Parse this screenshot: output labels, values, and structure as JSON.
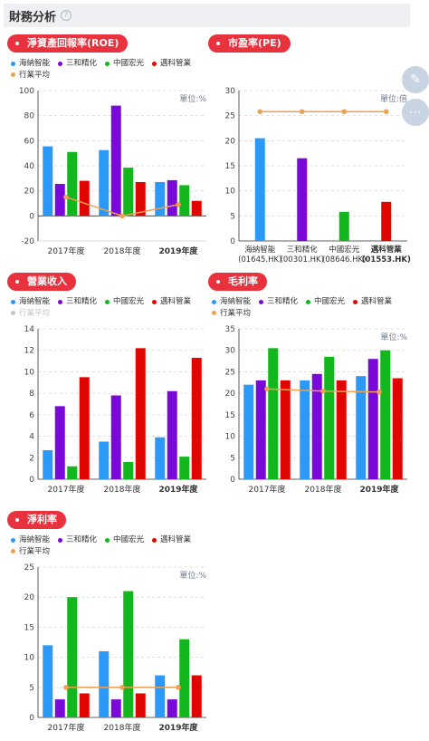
{
  "header": {
    "title": "財務分析",
    "help_icon": "?"
  },
  "side_buttons": {
    "edit_icon": "✎",
    "share_icon": "⋯"
  },
  "series_names": [
    "海納智能",
    "三和精化",
    "中國宏光",
    "邁科管業"
  ],
  "avg_name": "行業平均",
  "colors": {
    "series": [
      "#2b99f7",
      "#7a08d8",
      "#12b61d",
      "#e10500"
    ],
    "avg": "#f0a050",
    "pill": "#e8333f"
  },
  "chart_data": [
    {
      "id": "roe",
      "type": "bar",
      "title": "淨資產回報率(ROE)",
      "unit": "單位:%",
      "categories": [
        "2017年度",
        "2018年度",
        "2019年度"
      ],
      "bold_last": true,
      "ylim": [
        -20,
        100
      ],
      "yticks": [
        -20,
        0,
        20,
        40,
        60,
        80,
        100
      ],
      "series": [
        {
          "name": "海納智能",
          "values": [
            55.5,
            52.5,
            27
          ]
        },
        {
          "name": "三和精化",
          "values": [
            25.5,
            88,
            28.5
          ]
        },
        {
          "name": "中國宏光",
          "values": [
            51,
            38.5,
            24.5
          ]
        },
        {
          "name": "邁科管業",
          "values": [
            28,
            27,
            12
          ]
        }
      ],
      "avg": [
        15,
        0,
        9
      ],
      "avg_dim": false,
      "grid": true
    },
    {
      "id": "pe",
      "type": "bar",
      "title": "市盈率(PE)",
      "unit": "單位:倍",
      "categories": [
        "海納智能\n(01645.HK)",
        "三和精化\n(00301.HK)",
        "中國宏光\n(08646.HK)",
        "邁科管業\n(01553.HK)"
      ],
      "bold_last": true,
      "ylim": [
        0,
        30
      ],
      "yticks": [
        0,
        5,
        10,
        15,
        20,
        25,
        30
      ],
      "values": [
        20.5,
        16.5,
        5.8,
        7.8
      ],
      "avg": [
        25.8,
        25.8,
        25.8,
        25.8
      ],
      "grid": true
    },
    {
      "id": "revenue",
      "type": "bar",
      "title": "營業收入",
      "unit": "",
      "categories": [
        "2017年度",
        "2018年度",
        "2019年度"
      ],
      "bold_last": true,
      "ylim": [
        0,
        14
      ],
      "yticks": [
        0,
        2,
        4,
        6,
        8,
        10,
        12,
        14
      ],
      "series": [
        {
          "name": "海納智能",
          "values": [
            2.7,
            3.5,
            3.9
          ]
        },
        {
          "name": "三和精化",
          "values": [
            6.8,
            7.8,
            8.2
          ]
        },
        {
          "name": "中國宏光",
          "values": [
            1.2,
            1.6,
            2.1
          ]
        },
        {
          "name": "邁科管業",
          "values": [
            9.5,
            12.2,
            11.3
          ]
        }
      ],
      "avg": [],
      "avg_dim": true,
      "grid": true
    },
    {
      "id": "gross",
      "type": "bar",
      "title": "毛利率",
      "unit": "單位:%",
      "categories": [
        "2017年度",
        "2018年度",
        "2019年度"
      ],
      "bold_last": true,
      "ylim": [
        0,
        35
      ],
      "yticks": [
        0,
        5,
        10,
        15,
        20,
        25,
        30,
        35
      ],
      "series": [
        {
          "name": "海納智能",
          "values": [
            22,
            23,
            24
          ]
        },
        {
          "name": "三和精化",
          "values": [
            23,
            24.5,
            28
          ]
        },
        {
          "name": "中國宏光",
          "values": [
            30.5,
            28.5,
            30
          ]
        },
        {
          "name": "邁科管業",
          "values": [
            23,
            23,
            23.5
          ]
        }
      ],
      "avg": [
        21,
        20.5,
        20.3
      ],
      "avg_dim": false,
      "grid": true
    },
    {
      "id": "net",
      "type": "bar",
      "title": "淨利率",
      "unit": "單位:%",
      "categories": [
        "2017年度",
        "2018年度",
        "2019年度"
      ],
      "bold_last": true,
      "ylim": [
        0,
        25
      ],
      "yticks": [
        0,
        5,
        10,
        15,
        20,
        25
      ],
      "series": [
        {
          "name": "海納智能",
          "values": [
            12,
            11,
            7
          ]
        },
        {
          "name": "三和精化",
          "values": [
            3,
            3,
            3
          ]
        },
        {
          "name": "中國宏光",
          "values": [
            20,
            21,
            13
          ]
        },
        {
          "name": "邁科管業",
          "values": [
            4,
            4,
            7
          ]
        }
      ],
      "avg": [
        5,
        5,
        5
      ],
      "avg_dim": false,
      "grid": true
    }
  ]
}
